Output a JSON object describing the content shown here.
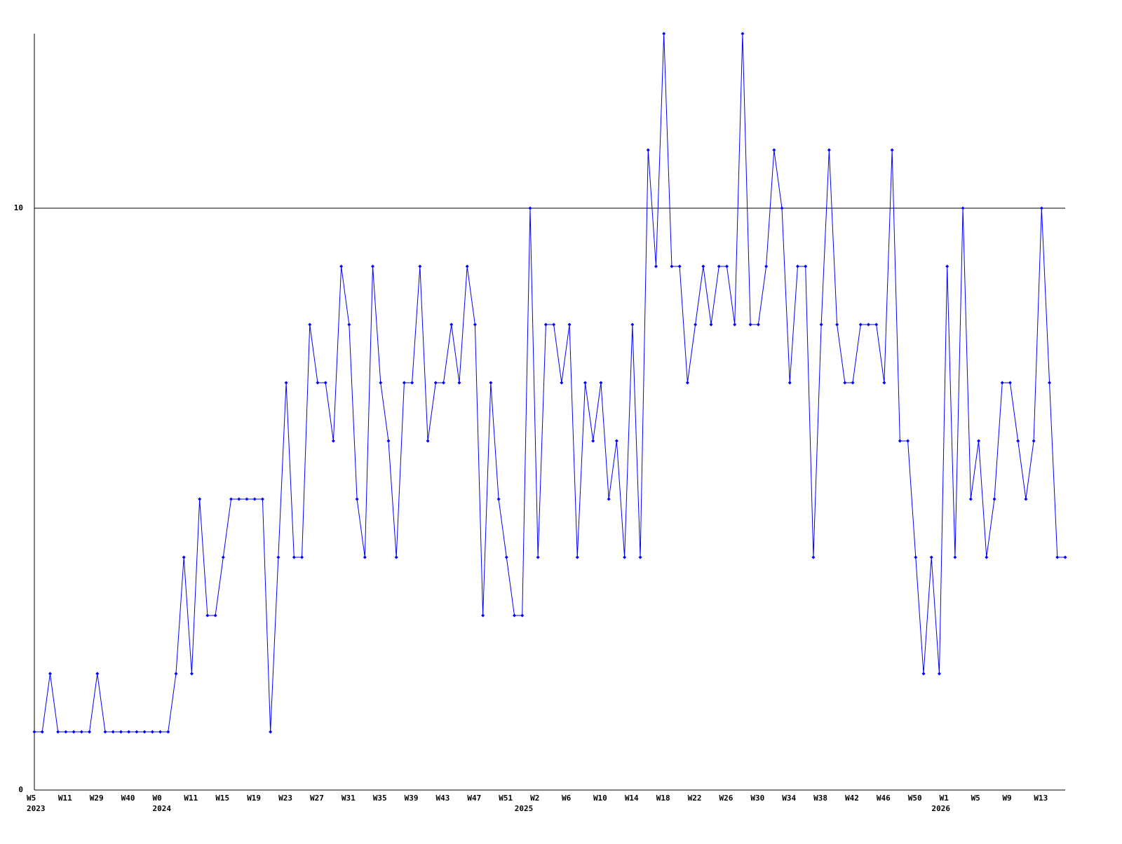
{
  "chart_data": {
    "type": "line",
    "categories": [
      "W5",
      null,
      null,
      null,
      "W11",
      null,
      null,
      null,
      "W29",
      null,
      null,
      null,
      "W40",
      null,
      null,
      null,
      "W0",
      null,
      null,
      null,
      "W11",
      null,
      null,
      null,
      "W15",
      null,
      null,
      null,
      "W19",
      null,
      null,
      null,
      "W23",
      null,
      null,
      null,
      "W27",
      null,
      null,
      null,
      "W31",
      null,
      null,
      null,
      "W35",
      null,
      null,
      null,
      "W39",
      null,
      null,
      null,
      "W43",
      null,
      null,
      null,
      "W47",
      null,
      null,
      null,
      "W51",
      null,
      null,
      null,
      "W2",
      null,
      null,
      null,
      "W6",
      null,
      null,
      null,
      "W10",
      null,
      null,
      null,
      "W14",
      null,
      null,
      null,
      "W18",
      null,
      null,
      null,
      "W22",
      null,
      null,
      null,
      "W26",
      null,
      null,
      null,
      "W30",
      null,
      null,
      null,
      "W34",
      null,
      null,
      null,
      "W38",
      null,
      null,
      null,
      "W42",
      null,
      null,
      null,
      "W46",
      null,
      null,
      null,
      "W50",
      null,
      null,
      null,
      "W1",
      null,
      null,
      null,
      "W5",
      null,
      null,
      null,
      "W9",
      null,
      null,
      null,
      "W13",
      null,
      null,
      null
    ],
    "years": [
      "2023",
      null,
      null,
      null,
      null,
      null,
      null,
      null,
      null,
      null,
      null,
      null,
      null,
      null,
      null,
      null,
      "2024",
      null,
      null,
      null,
      null,
      null,
      null,
      null,
      null,
      null,
      null,
      null,
      null,
      null,
      null,
      null,
      null,
      null,
      null,
      null,
      null,
      null,
      null,
      null,
      null,
      null,
      null,
      null,
      null,
      null,
      null,
      null,
      null,
      null,
      null,
      null,
      null,
      null,
      null,
      null,
      null,
      null,
      null,
      null,
      null,
      null,
      "2025",
      null,
      null,
      null,
      null,
      null,
      null,
      null,
      null,
      null,
      null,
      null,
      null,
      null,
      null,
      null,
      null,
      null,
      null,
      null,
      null,
      null,
      null,
      null,
      null,
      null,
      null,
      null,
      null,
      null,
      null,
      null,
      null,
      null,
      null,
      null,
      null,
      null,
      null,
      null,
      null,
      null,
      null,
      null,
      null,
      null,
      null,
      null,
      null,
      null,
      null,
      null,
      null,
      "2026",
      null,
      null,
      null,
      null,
      null,
      null,
      null,
      null,
      null,
      null,
      null,
      null,
      null,
      null,
      null,
      null
    ],
    "series": [
      {
        "color": "#0000ff",
        "values": [
          1,
          1,
          2,
          1,
          1,
          1,
          1,
          1,
          2,
          1,
          1,
          1,
          1,
          1,
          1,
          1,
          1,
          1,
          2,
          4,
          2,
          5,
          3,
          3,
          4,
          5,
          5,
          5,
          5,
          5,
          1,
          4,
          7,
          4,
          4,
          8,
          7,
          7,
          6,
          9,
          8,
          5,
          4,
          9,
          7,
          6,
          4,
          7,
          7,
          9,
          6,
          7,
          7,
          8,
          7,
          9,
          8,
          3,
          7,
          5,
          4,
          3,
          3,
          10,
          4,
          8,
          8,
          7,
          8,
          4,
          7,
          6,
          7,
          5,
          6,
          4,
          8,
          4,
          11,
          9,
          13,
          9,
          9,
          7,
          8,
          9,
          8,
          9,
          9,
          8,
          13,
          8,
          8,
          9,
          11,
          10,
          7,
          9,
          9,
          4,
          8,
          11,
          8,
          7,
          7,
          8,
          8,
          8,
          7,
          11,
          6,
          6,
          4,
          2,
          4,
          2,
          9,
          4,
          10,
          5,
          6,
          4,
          5,
          7,
          7,
          6,
          5,
          6,
          10,
          7,
          4,
          4
        ]
      }
    ],
    "ylim": [
      0,
      13
    ],
    "yticks": [
      0,
      10
    ],
    "grid": true
  }
}
